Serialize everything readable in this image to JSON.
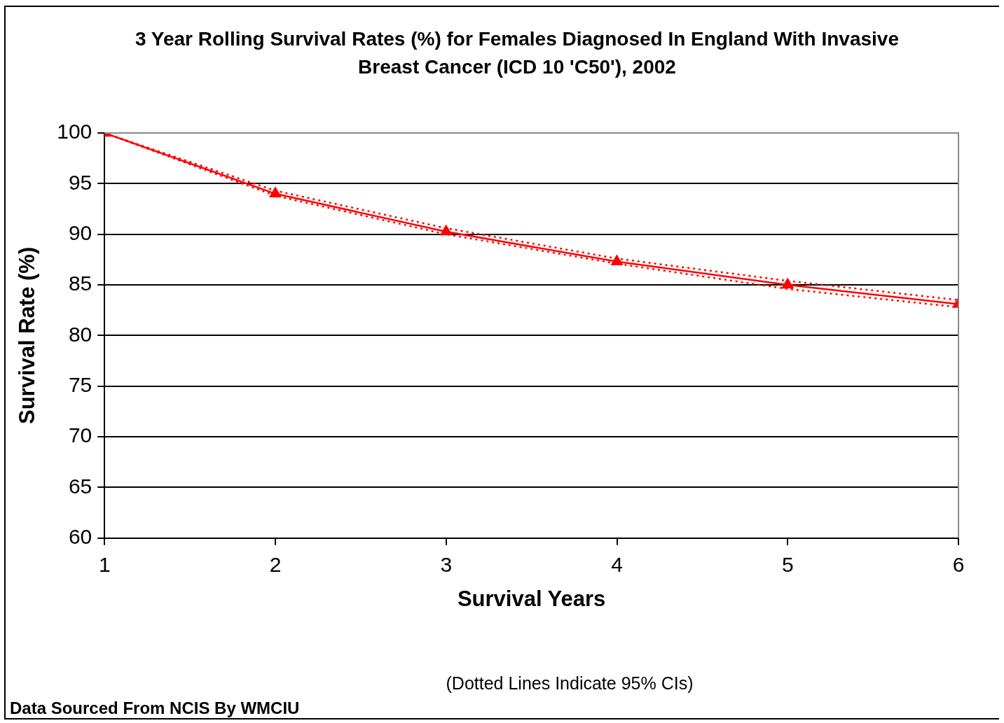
{
  "chart_data": {
    "type": "line",
    "title": "3 Year Rolling Survival Rates (%) for Females Diagnosed In England With Invasive Breast Cancer (ICD 10 'C50'), 2002",
    "xlabel": "Survival Years",
    "ylabel": "Survival Rate (%)",
    "annotations": [
      "(Dotted Lines Indicate 95% CIs)",
      "Data Sourced From NCIS By WMCIU"
    ],
    "x": [
      1,
      2,
      3,
      4,
      5,
      6
    ],
    "series": [
      {
        "color": "#ff0000",
        "values": [
          100,
          94.0,
          90.25,
          87.3,
          85.0,
          83.1
        ]
      },
      {
        "color": "#ff0000",
        "values": [
          100,
          93.8,
          90.0,
          87.1,
          84.6,
          82.8
        ],
        "marker": "none",
        "line_style": "dotted"
      },
      {
        "color": "#ff0000",
        "values": [
          100,
          94.3,
          90.6,
          87.6,
          85.4,
          83.5
        ],
        "marker": "none",
        "line_style": "dotted"
      }
    ],
    "xlim": [
      1,
      6
    ],
    "xticks": [
      1,
      2,
      3,
      4,
      5,
      6
    ],
    "ylim": [
      60,
      100
    ],
    "yticks": [
      60,
      65,
      70,
      75,
      80,
      85,
      90,
      95,
      100
    ],
    "grid": "y",
    "legend": false,
    "marker": "triangle",
    "line_style": "solid"
  }
}
